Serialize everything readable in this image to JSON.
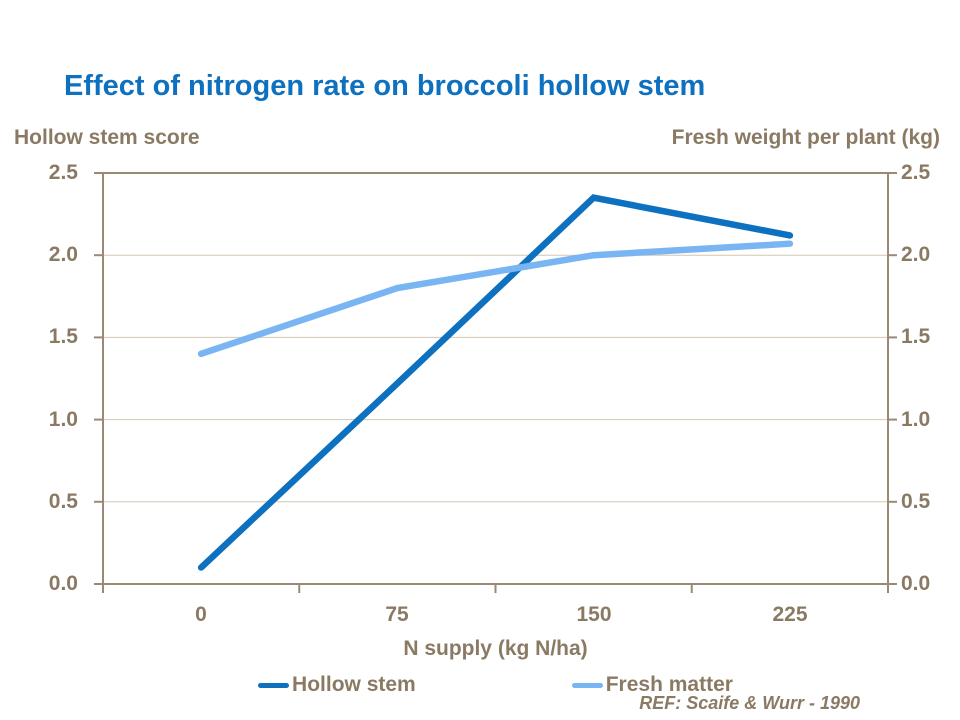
{
  "ref_note": "REF: Scaife & Wurr - 1990",
  "colors": {
    "title": "#0e71c0",
    "text": "#8a7a64",
    "axis": "#9a8a74",
    "gridline": "#d2c7b4",
    "background": "#ffffff"
  },
  "chart_data": {
    "type": "line",
    "title": "Effect of nitrogen rate on broccoli hollow stem",
    "categories": [
      "0",
      "75",
      "150",
      "225"
    ],
    "series": [
      {
        "name": "Hollow stem",
        "values": [
          0.1,
          1.22,
          2.35,
          2.12
        ],
        "color": "#0e71c0"
      },
      {
        "name": "Fresh matter",
        "values": [
          1.4,
          1.8,
          2.0,
          2.07
        ],
        "color": "#79b5f2"
      }
    ],
    "xlabel": "N supply (kg N/ha)",
    "ylabel_left": "Hollow stem score",
    "ylabel_right": "Fresh weight per plant (kg)",
    "ylim": [
      0,
      2.5
    ],
    "y_ticks": [
      "0.0",
      "0.5",
      "1.0",
      "1.5",
      "2.0",
      "2.5"
    ],
    "grid": true,
    "legend_position": "bottom",
    "axis_style": "category-x, mirrored dual y"
  }
}
